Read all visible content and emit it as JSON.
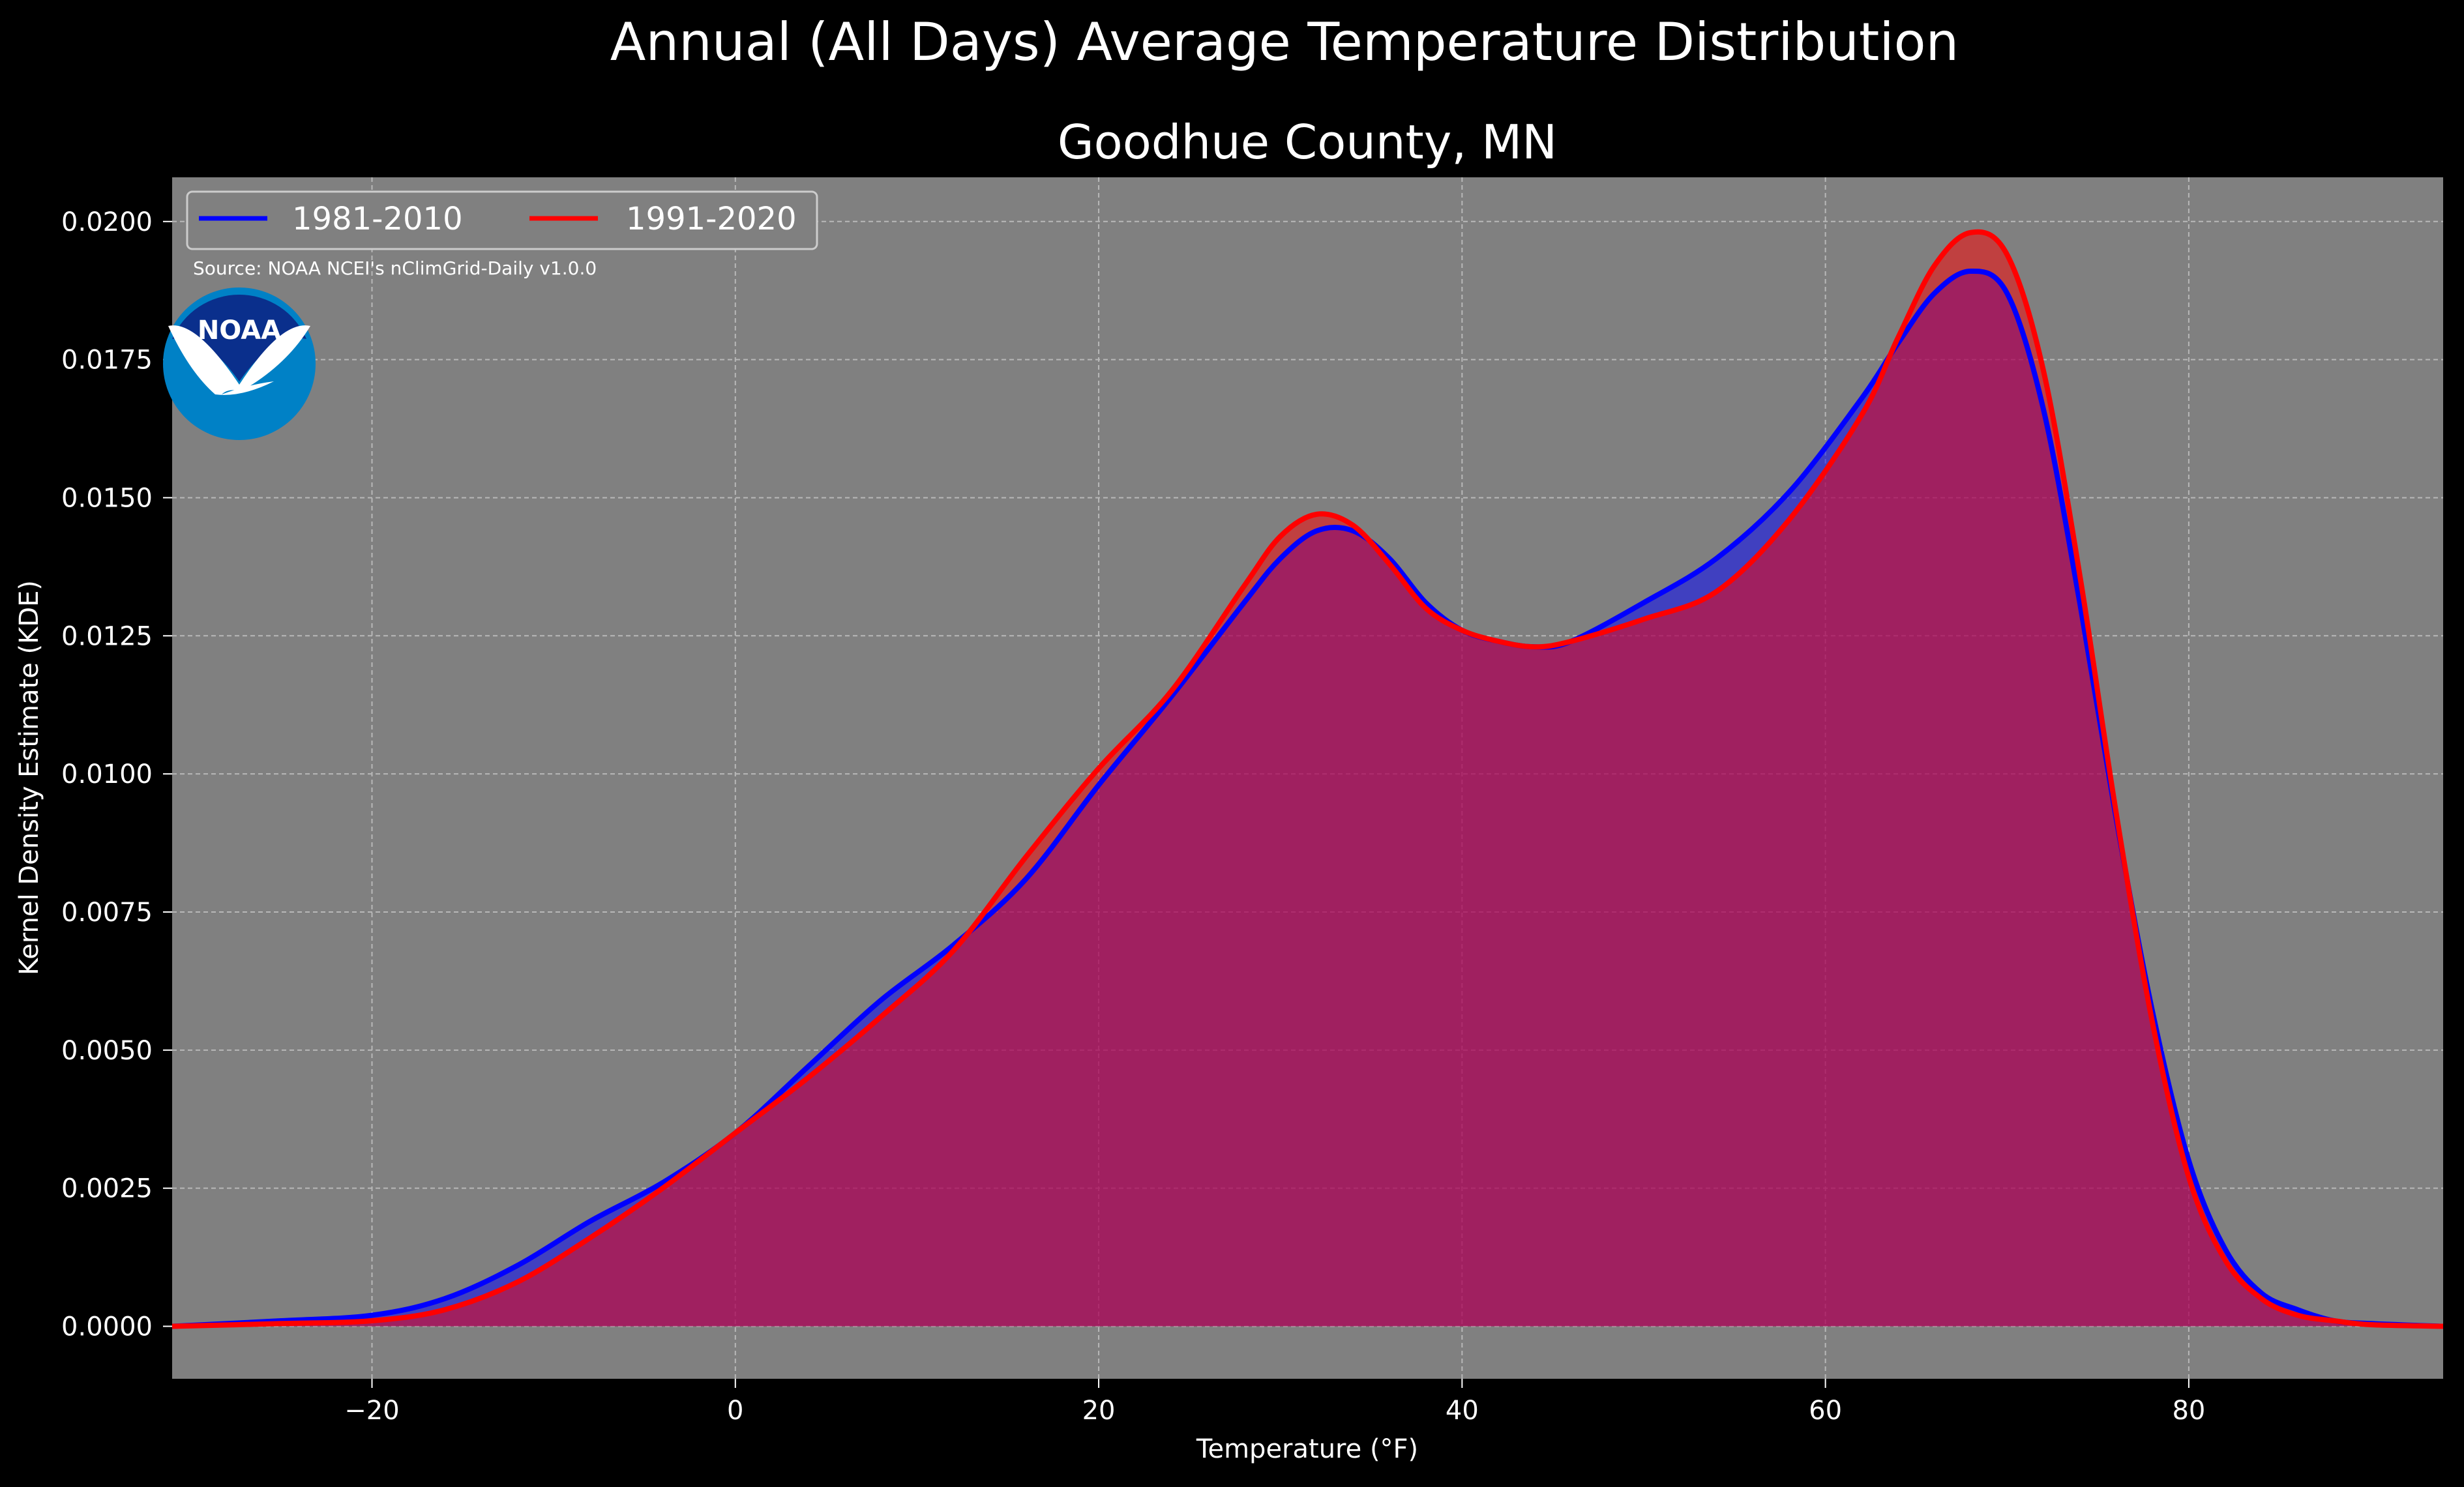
{
  "chart_data": {
    "type": "area",
    "suptitle": "Annual (All Days) Average Temperature Distribution",
    "title": "Goodhue County, MN",
    "xlabel": "Temperature (°F)",
    "ylabel": "Kernel Density Estimate (KDE)",
    "xlim": [
      -31,
      94
    ],
    "ylim": [
      -0.00095,
      0.0208
    ],
    "xticks": [
      -20,
      0,
      20,
      40,
      60,
      80
    ],
    "xtick_labels": [
      "−20",
      "0",
      "20",
      "40",
      "60",
      "80"
    ],
    "yticks": [
      0,
      0.0025,
      0.005,
      0.0075,
      0.01,
      0.0125,
      0.015,
      0.0175,
      0.02
    ],
    "ytick_labels": [
      "0.0000",
      "0.0025",
      "0.0050",
      "0.0075",
      "0.0100",
      "0.0125",
      "0.0150",
      "0.0175",
      "0.0200"
    ],
    "grid": true,
    "legend_position": "top-left",
    "source_note": "Source: NOAA NCEI's nClimGrid-Daily v1.0.0",
    "logo_text": "NOAA",
    "colors": {
      "figure_bg": "#000000",
      "axes_bg": "#808080",
      "series_1": "#0000ff",
      "series_2": "#ff0000",
      "logo_outer": "#0081c6",
      "logo_inner": "#0a2f8c"
    },
    "series": [
      {
        "name": "1981-2010",
        "color": "#0000ff",
        "x": [
          -31,
          -25,
          -20,
          -16,
          -12,
          -8,
          -4,
          0,
          4,
          8,
          12,
          16,
          20,
          24,
          28,
          30,
          32,
          34,
          36,
          38,
          40,
          42,
          44,
          46,
          50,
          54,
          58,
          62,
          64,
          66,
          68,
          70,
          72,
          74,
          76,
          78,
          80,
          82,
          84,
          86,
          88,
          90,
          94
        ],
        "y": [
          0.0,
          0.0001,
          0.0002,
          0.0005,
          0.0011,
          0.0019,
          0.0026,
          0.0035,
          0.0047,
          0.0059,
          0.0069,
          0.0081,
          0.0098,
          0.0114,
          0.0131,
          0.0139,
          0.0144,
          0.0144,
          0.0139,
          0.0131,
          0.0126,
          0.0124,
          0.0123,
          0.0124,
          0.0131,
          0.0139,
          0.0151,
          0.0168,
          0.0178,
          0.0187,
          0.0191,
          0.0187,
          0.0166,
          0.0131,
          0.0092,
          0.0057,
          0.003,
          0.0014,
          0.0006,
          0.0003,
          0.0001,
          5e-05,
          0.0
        ]
      },
      {
        "name": "1991-2020",
        "color": "#ff0000",
        "x": [
          -31,
          -25,
          -20,
          -16,
          -12,
          -8,
          -4,
          0,
          4,
          8,
          12,
          16,
          20,
          24,
          28,
          30,
          32,
          34,
          36,
          38,
          40,
          42,
          44,
          46,
          50,
          54,
          58,
          62,
          64,
          66,
          68,
          70,
          72,
          74,
          76,
          78,
          80,
          82,
          84,
          86,
          88,
          90,
          94
        ],
        "y": [
          0.0,
          5e-05,
          0.0001,
          0.0003,
          0.0008,
          0.0016,
          0.0025,
          0.0035,
          0.0045,
          0.0056,
          0.0068,
          0.0085,
          0.0101,
          0.0115,
          0.0134,
          0.0143,
          0.0147,
          0.0145,
          0.0138,
          0.013,
          0.0126,
          0.0124,
          0.0123,
          0.0124,
          0.0128,
          0.0133,
          0.0146,
          0.0165,
          0.0179,
          0.0192,
          0.0198,
          0.0194,
          0.0173,
          0.0136,
          0.0093,
          0.0055,
          0.0027,
          0.0012,
          0.0005,
          0.0002,
          0.0001,
          3e-05,
          0.0
        ]
      }
    ]
  }
}
